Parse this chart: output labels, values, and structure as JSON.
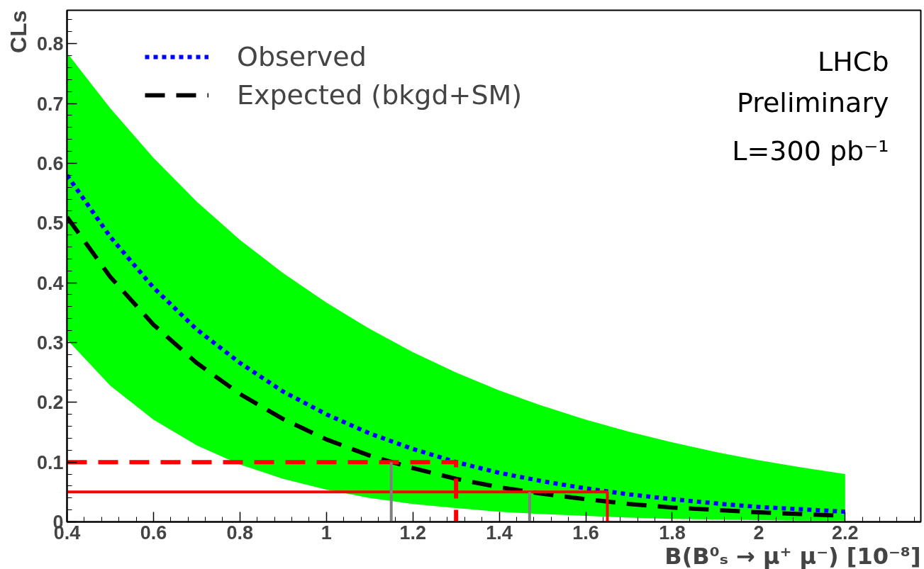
{
  "chart_data": {
    "type": "line",
    "xlabel": "B(B⁰ₛ → μ⁺ μ⁻) [10⁻⁸]",
    "ylabel": "CLs",
    "x": [
      0.4,
      0.5,
      0.6,
      0.7,
      0.8,
      0.9,
      1.0,
      1.1,
      1.2,
      1.3,
      1.4,
      1.5,
      1.6,
      1.7,
      1.8,
      1.9,
      2.0,
      2.1,
      2.2
    ],
    "series": [
      {
        "name": "Observed",
        "color": "#0000ff",
        "line_style": "dotted",
        "values": [
          0.58,
          0.477,
          0.392,
          0.322,
          0.266,
          0.218,
          0.18,
          0.148,
          0.122,
          0.1,
          0.082,
          0.068,
          0.056,
          0.046,
          0.038,
          0.031,
          0.025,
          0.021,
          0.017
        ]
      },
      {
        "name": "Expected (bkgd+SM)",
        "color": "#000000",
        "line_style": "dashed",
        "values": [
          0.51,
          0.41,
          0.33,
          0.266,
          0.214,
          0.172,
          0.138,
          0.111,
          0.09,
          0.072,
          0.058,
          0.047,
          0.038,
          0.03,
          0.024,
          0.02,
          0.016,
          0.013,
          0.01
        ],
        "lower": [
          0.305,
          0.228,
          0.171,
          0.128,
          0.096,
          0.072,
          0.054,
          0.04,
          0.03,
          0.023,
          0.017,
          0.013,
          0.01,
          0.007,
          0.005,
          0.004,
          0.003,
          0.002,
          0.002
        ],
        "upper": [
          0.785,
          0.692,
          0.609,
          0.536,
          0.472,
          0.416,
          0.367,
          0.323,
          0.284,
          0.25,
          0.22,
          0.194,
          0.171,
          0.151,
          0.133,
          0.117,
          0.103,
          0.091,
          0.08
        ]
      },
      {
        "x": [
          0.4,
          1.3,
          1.3
        ],
        "color": "#ff0000",
        "line_style": "dashed",
        "values": [
          0.1,
          0.1,
          0
        ]
      },
      {
        "x": [
          0.4,
          1.65,
          1.65
        ],
        "color": "#ff0000",
        "line_style": "solid",
        "values": [
          0.05,
          0.05,
          0
        ]
      },
      {
        "x": [
          1.15,
          1.15
        ],
        "color": "#808080",
        "line_style": "solid",
        "values": [
          0,
          0.1
        ]
      },
      {
        "x": [
          1.47,
          1.47
        ],
        "color": "#808080",
        "line_style": "solid",
        "values": [
          0,
          0.05
        ]
      }
    ],
    "xlim": [
      0.4,
      2.375
    ],
    "ylim": [
      0,
      0.856
    ],
    "xticks": [
      {
        "value": 0.4,
        "label": "0.4"
      },
      {
        "value": 0.6,
        "label": "0.6"
      },
      {
        "value": 0.8,
        "label": "0.8"
      },
      1,
      {
        "value": 1.2,
        "label": "1.2"
      },
      {
        "value": 1.4,
        "label": "1.4"
      },
      {
        "value": 1.6,
        "label": "1.6"
      },
      {
        "value": 1.8,
        "label": "1.8"
      },
      2,
      {
        "value": 2.2,
        "label": "2.2"
      }
    ],
    "yticks": [
      0,
      {
        "value": 0.1,
        "label": "0.1"
      },
      {
        "value": 0.2,
        "label": "0.2"
      },
      {
        "value": 0.3,
        "label": "0.3"
      },
      {
        "value": 0.4,
        "label": "0.4"
      },
      {
        "value": 0.5,
        "label": "0.5"
      },
      {
        "value": 0.6,
        "label": "0.6"
      },
      {
        "value": 0.7,
        "label": "0.7"
      },
      {
        "value": 0.8,
        "label": "0.8"
      }
    ],
    "legend": "top left",
    "grid": false,
    "annotations": [
      "LHCb",
      "Preliminary",
      "L=300 pb⁻¹"
    ]
  }
}
